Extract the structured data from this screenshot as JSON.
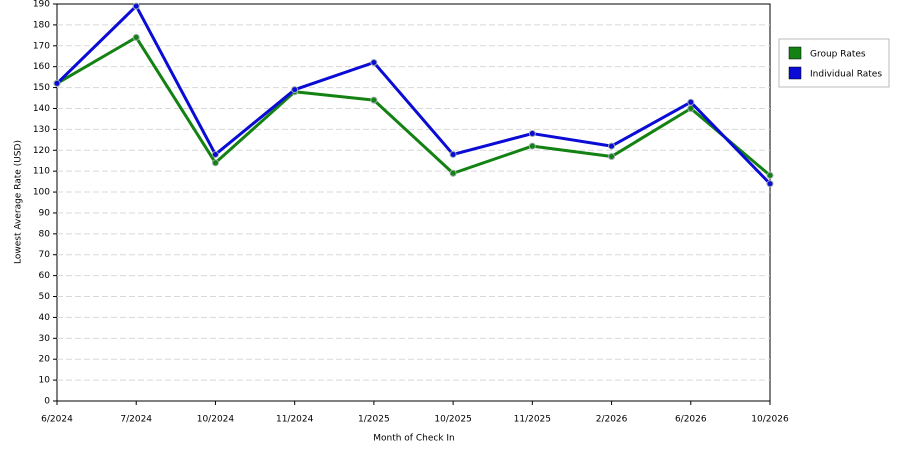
{
  "chart_data": {
    "type": "line",
    "x_label": "Month of Check In",
    "y_label": "Lowest Average Rate (USD)",
    "categories": [
      "6/2024",
      "7/2024",
      "10/2024",
      "11/2024",
      "1/2025",
      "10/2025",
      "11/2025",
      "2/2026",
      "6/2026",
      "10/2026"
    ],
    "series": [
      {
        "name": "Group Rates",
        "color": "#138213",
        "values": [
          152,
          174,
          114,
          148,
          144,
          109,
          122,
          117,
          140,
          108
        ]
      },
      {
        "name": "Individual Rates",
        "color": "#0b0bd6",
        "values": [
          152,
          189,
          118,
          149,
          162,
          118,
          128,
          122,
          143,
          104
        ]
      }
    ],
    "ylim": [
      0,
      190
    ],
    "yticks": [
      0,
      10,
      20,
      30,
      40,
      50,
      60,
      70,
      80,
      90,
      100,
      110,
      120,
      130,
      140,
      150,
      160,
      170,
      180,
      190
    ],
    "grid": true,
    "legend": "right"
  }
}
